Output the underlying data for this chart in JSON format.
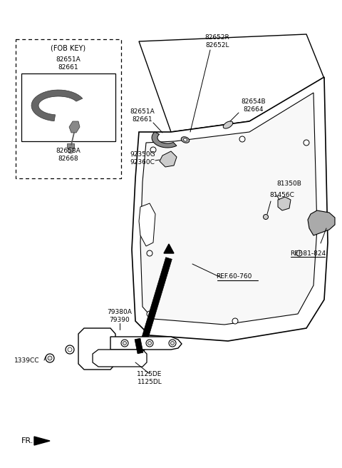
{
  "bg_color": "#ffffff",
  "line_color": "#000000",
  "labels": {
    "fob_key_box": "(FOB KEY)",
    "lbl_82651A_82661_fob": "82651A\n82661",
    "lbl_82658A_82668": "82658A\n82668",
    "lbl_82651A_82661": "82651A\n82661",
    "lbl_82652R_82652L": "82652R\n82652L",
    "lbl_82654B_82664": "82654B\n82664",
    "lbl_92350G_92360C": "92350G\n92360C",
    "lbl_81350B": "81350B",
    "lbl_81456C": "81456C",
    "lbl_REF81824": "REF.81-824",
    "lbl_REF60760": "REF.60-760",
    "lbl_79380A_79390": "79380A\n79390",
    "lbl_1339CC": "1339CC",
    "lbl_1125DE_1125DL": "1125DE\n1125DL",
    "lbl_FR": "FR."
  },
  "fs": 7.0,
  "ft": 6.5
}
